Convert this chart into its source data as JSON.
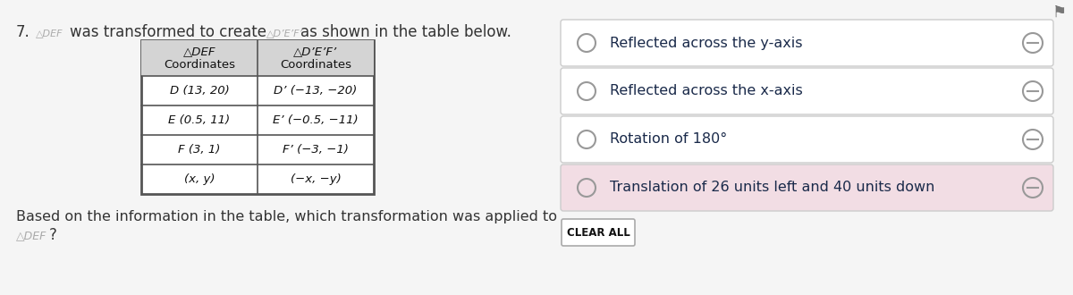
{
  "bg_color": "#f5f5f5",
  "text_color": "#333333",
  "option_text_color": "#1a2a4a",
  "header_bg": "#d4d4d4",
  "table_border_color": "#555555",
  "option_highlight_color": "#f2dde4",
  "option_box_color": "#ffffff",
  "option_border_color": "#cccccc",
  "flag_color": "#777777",
  "table_rows": [
    [
      "D (13, 20)",
      "D’ (−13, −20)"
    ],
    [
      "E (0.5, 11)",
      "E’ (−0.5, −11)"
    ],
    [
      "F (3, 1)",
      "F’ (−3, −1)"
    ],
    [
      "(x, y)",
      "(−x, −y)"
    ]
  ],
  "options": [
    "Reflected across the y-axis",
    "Reflected across the x-axis",
    "Rotation of 180°",
    "Translation of 26 units left and 40 units down"
  ],
  "options_italic_word": [
    "y",
    "x",
    "",
    ""
  ],
  "option_highlighted": 3,
  "clear_all_text": "CLEAR ALL"
}
